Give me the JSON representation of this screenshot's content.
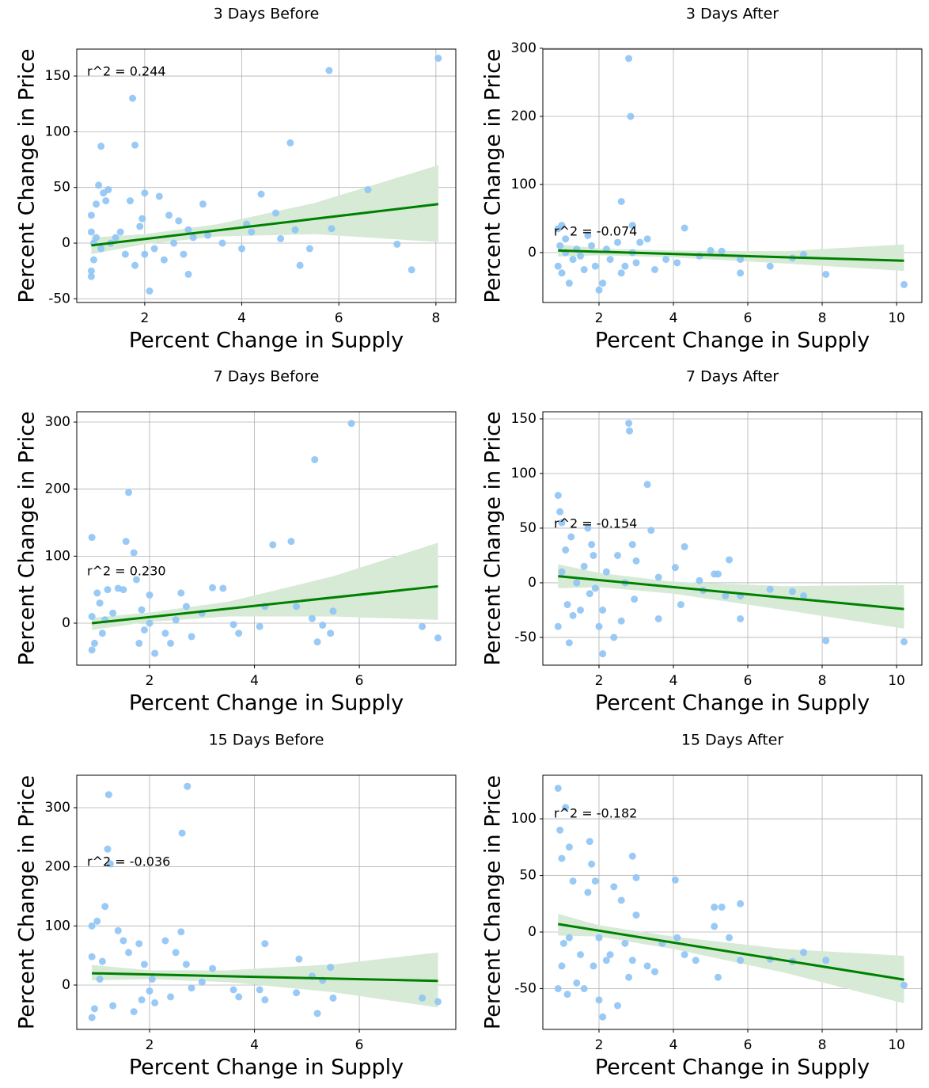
{
  "chart_data": [
    {
      "type": "scatter",
      "title": "3 Days Before",
      "xlabel": "Percent Change in Supply",
      "ylabel": "Percent Change in Price",
      "annotation": "r^2 = 0.244",
      "color": "#8ec4f5",
      "grid": true,
      "xlim": [
        0.6,
        8.41
      ],
      "ylim": [
        -53.3,
        174.2
      ],
      "xticks": [
        2,
        4,
        6,
        8
      ],
      "yticks": [
        -50,
        0,
        50,
        100,
        150
      ],
      "x": [
        0.9,
        0.9,
        0.9,
        0.9,
        0.95,
        0.95,
        1.0,
        1.0,
        1.05,
        1.1,
        1.1,
        1.15,
        1.2,
        1.25,
        1.3,
        1.4,
        1.5,
        1.6,
        1.7,
        1.75,
        1.8,
        1.8,
        1.9,
        1.95,
        2.0,
        2.0,
        2.1,
        2.2,
        2.3,
        2.4,
        2.5,
        2.6,
        2.7,
        2.8,
        2.9,
        2.9,
        3.0,
        3.2,
        3.3,
        3.6,
        4.0,
        4.1,
        4.2,
        4.4,
        4.7,
        4.8,
        5.0,
        5.1,
        5.2,
        5.4,
        5.8,
        5.85,
        6.6,
        7.2,
        7.5,
        8.05
      ],
      "y": [
        -30,
        -25,
        25,
        10,
        0,
        -15,
        5,
        35,
        52,
        87,
        -5,
        45,
        38,
        48,
        0,
        5,
        10,
        -10,
        38,
        130,
        88,
        -20,
        15,
        22,
        45,
        -10,
        -43,
        -5,
        42,
        -15,
        25,
        0,
        20,
        -10,
        -28,
        12,
        5,
        35,
        7,
        0,
        -5,
        17,
        10,
        44,
        27,
        4,
        90,
        12,
        -20,
        -5,
        155,
        13,
        48,
        -1,
        -24,
        166
      ],
      "fit": {
        "color": "#008000",
        "x": [
          0.9,
          8.05
        ],
        "y": [
          -2,
          35
        ]
      },
      "band": {
        "color": "#d6ead6",
        "x": [
          0.9,
          2,
          3.5,
          5.5,
          8.05
        ],
        "upper": [
          5,
          8,
          17,
          36,
          70
        ],
        "lower": [
          -10,
          -1,
          6,
          8,
          1
        ]
      }
    },
    {
      "type": "scatter",
      "title": "3 Days After",
      "xlabel": "Percent Change in Supply",
      "ylabel": "Percent Change in Price",
      "annotation": "r^2 = -0.074",
      "color": "#8ec4f5",
      "grid": true,
      "xlim": [
        0.49,
        10.68
      ],
      "ylim": [
        -73.3,
        298.8
      ],
      "xticks": [
        2,
        4,
        6,
        8,
        10
      ],
      "yticks": [
        0,
        100,
        200,
        300
      ],
      "x": [
        0.9,
        0.9,
        0.95,
        1.0,
        1.0,
        1.1,
        1.1,
        1.2,
        1.3,
        1.4,
        1.5,
        1.6,
        1.7,
        1.8,
        1.9,
        2.0,
        2.1,
        2.2,
        2.3,
        2.5,
        2.6,
        2.6,
        2.7,
        2.8,
        2.85,
        2.9,
        2.9,
        3.0,
        3.1,
        3.3,
        3.5,
        3.8,
        4.1,
        4.3,
        4.7,
        5.0,
        5.3,
        5.8,
        5.8,
        6.6,
        7.2,
        7.5,
        8.1,
        10.2
      ],
      "y": [
        35,
        -20,
        10,
        40,
        -30,
        0,
        20,
        -45,
        -10,
        5,
        -5,
        -25,
        25,
        10,
        -20,
        -55,
        -45,
        5,
        -10,
        15,
        -30,
        75,
        -20,
        285,
        200,
        0,
        40,
        -15,
        15,
        20,
        -25,
        -10,
        -15,
        36,
        -5,
        3,
        2,
        -30,
        -10,
        -20,
        -8,
        -3,
        -32,
        -47
      ],
      "fit": {
        "color": "#008000",
        "x": [
          0.9,
          10.2
        ],
        "y": [
          3,
          -12
        ]
      },
      "band": {
        "color": "#d6ead6",
        "x": [
          0.9,
          2,
          4,
          7,
          10.2
        ],
        "upper": [
          12,
          6,
          3,
          2,
          12
        ],
        "lower": [
          -6,
          -4,
          -7,
          -16,
          -27
        ]
      }
    },
    {
      "type": "scatter",
      "title": "7 Days Before",
      "xlabel": "Percent Change in Supply",
      "ylabel": "Percent Change in Price",
      "annotation": "r^2 = 0.230",
      "color": "#8ec4f5",
      "grid": true,
      "xlim": [
        0.611,
        7.84
      ],
      "ylim": [
        -62.6,
        315.4
      ],
      "xticks": [
        2,
        4,
        6
      ],
      "yticks": [
        0,
        100,
        200,
        300
      ],
      "x": [
        0.9,
        0.9,
        0.9,
        0.95,
        1.0,
        1.05,
        1.1,
        1.15,
        1.2,
        1.3,
        1.4,
        1.5,
        1.55,
        1.6,
        1.7,
        1.75,
        1.8,
        1.85,
        1.9,
        2.0,
        2.0,
        2.1,
        2.3,
        2.4,
        2.5,
        2.6,
        2.7,
        2.8,
        3.0,
        3.2,
        3.4,
        3.6,
        3.7,
        4.1,
        4.2,
        4.35,
        4.7,
        4.8,
        5.1,
        5.15,
        5.2,
        5.3,
        5.45,
        5.5,
        5.85,
        7.2,
        7.5
      ],
      "y": [
        128,
        -40,
        10,
        -30,
        45,
        30,
        -15,
        5,
        50,
        15,
        52,
        50,
        122,
        195,
        105,
        65,
        -30,
        20,
        -10,
        42,
        0,
        -45,
        -15,
        -30,
        5,
        45,
        25,
        -20,
        15,
        53,
        52,
        -2,
        -15,
        -5,
        25,
        117,
        122,
        25,
        7,
        244,
        -28,
        -3,
        -15,
        18,
        298,
        -5,
        -22
      ],
      "fit": {
        "color": "#008000",
        "x": [
          0.9,
          7.5
        ],
        "y": [
          0,
          55
        ]
      },
      "band": {
        "color": "#d6ead6",
        "x": [
          0.9,
          2,
          3.5,
          5.5,
          7.5
        ],
        "upper": [
          8,
          16,
          32,
          70,
          120
        ],
        "lower": [
          -10,
          2,
          10,
          10,
          5
        ]
      }
    },
    {
      "type": "scatter",
      "title": "7 Days After",
      "xlabel": "Percent Change in Supply",
      "ylabel": "Percent Change in Price",
      "annotation": "r^2 = -0.154",
      "color": "#8ec4f5",
      "grid": true,
      "xlim": [
        0.49,
        10.68
      ],
      "ylim": [
        -75.4,
        156.5
      ],
      "xticks": [
        2,
        4,
        6,
        8,
        10
      ],
      "yticks": [
        -50,
        0,
        50,
        100,
        150
      ],
      "x": [
        0.9,
        0.9,
        0.95,
        1.0,
        1.0,
        1.1,
        1.15,
        1.2,
        1.25,
        1.3,
        1.4,
        1.5,
        1.6,
        1.7,
        1.75,
        1.8,
        1.85,
        1.9,
        2.0,
        2.1,
        2.1,
        2.2,
        2.4,
        2.5,
        2.6,
        2.7,
        2.8,
        2.82,
        2.9,
        2.95,
        3.0,
        3.3,
        3.4,
        3.6,
        3.6,
        4.05,
        4.2,
        4.3,
        4.7,
        4.8,
        5.1,
        5.2,
        5.4,
        5.5,
        5.8,
        5.8,
        6.6,
        7.2,
        7.5,
        8.1,
        10.2
      ],
      "y": [
        80,
        -40,
        65,
        55,
        10,
        30,
        -20,
        -55,
        42,
        -30,
        0,
        -25,
        15,
        50,
        -10,
        35,
        25,
        -5,
        -40,
        -65,
        -25,
        10,
        -50,
        25,
        -35,
        0,
        146,
        139,
        35,
        -15,
        20,
        90,
        48,
        -33,
        5,
        14,
        -20,
        33,
        2,
        -7,
        8,
        8,
        -12,
        21,
        -33,
        -12,
        -6,
        -8,
        -12,
        -53,
        -54
      ],
      "fit": {
        "color": "#008000",
        "x": [
          0.9,
          10.2
        ],
        "y": [
          6,
          -24
        ]
      },
      "band": {
        "color": "#d6ead6",
        "x": [
          0.9,
          2,
          4,
          7,
          10.2
        ],
        "upper": [
          17,
          9,
          1,
          -3,
          -2
        ],
        "lower": [
          -5,
          -4,
          -10,
          -25,
          -42
        ]
      }
    },
    {
      "type": "scatter",
      "title": "15 Days Before",
      "xlabel": "Percent Change in Supply",
      "ylabel": "Percent Change in Price",
      "annotation": "r^2 = -0.036",
      "color": "#8ec4f5",
      "grid": true,
      "xlim": [
        0.611,
        7.84
      ],
      "ylim": [
        -75,
        354.9
      ],
      "xticks": [
        2,
        4,
        6
      ],
      "yticks": [
        0,
        100,
        200,
        300
      ],
      "x": [
        0.9,
        0.9,
        0.9,
        0.95,
        1.0,
        1.05,
        1.1,
        1.15,
        1.2,
        1.22,
        1.25,
        1.3,
        1.4,
        1.5,
        1.6,
        1.7,
        1.8,
        1.85,
        1.9,
        2.0,
        2.05,
        2.1,
        2.3,
        2.4,
        2.5,
        2.6,
        2.62,
        2.7,
        2.72,
        2.8,
        3.0,
        3.2,
        3.6,
        3.7,
        4.1,
        4.2,
        4.2,
        4.8,
        4.85,
        5.1,
        5.2,
        5.3,
        5.45,
        5.5,
        7.2,
        7.5
      ],
      "y": [
        -55,
        100,
        48,
        -40,
        108,
        10,
        40,
        133,
        230,
        322,
        205,
        -35,
        92,
        75,
        55,
        -45,
        70,
        -25,
        35,
        -10,
        10,
        -30,
        75,
        -20,
        55,
        90,
        257,
        35,
        336,
        -5,
        5,
        28,
        -8,
        -20,
        -8,
        70,
        -25,
        -13,
        44,
        15,
        -48,
        8,
        30,
        -22,
        -22,
        -28
      ],
      "fit": {
        "color": "#008000",
        "x": [
          0.9,
          7.5
        ],
        "y": [
          20,
          7
        ]
      },
      "band": {
        "color": "#d6ead6",
        "x": [
          0.9,
          2,
          3.5,
          5.5,
          7.5
        ],
        "upper": [
          34,
          25,
          25,
          35,
          55
        ],
        "lower": [
          8,
          10,
          5,
          -12,
          -38
        ]
      }
    },
    {
      "type": "scatter",
      "title": "15 Days After",
      "xlabel": "Percent Change in Supply",
      "ylabel": "Percent Change in Price",
      "annotation": "r^2 = -0.182",
      "color": "#8ec4f5",
      "grid": true,
      "xlim": [
        0.49,
        10.68
      ],
      "ylim": [
        -86,
        138.5
      ],
      "xticks": [
        2,
        4,
        6,
        8,
        10
      ],
      "yticks": [
        -50,
        0,
        50,
        100
      ],
      "x": [
        0.9,
        0.9,
        0.95,
        1.0,
        1.0,
        1.05,
        1.1,
        1.15,
        1.2,
        1.2,
        1.3,
        1.4,
        1.5,
        1.6,
        1.7,
        1.75,
        1.8,
        1.85,
        1.9,
        2.0,
        2.0,
        2.1,
        2.2,
        2.3,
        2.4,
        2.5,
        2.6,
        2.7,
        2.8,
        2.9,
        2.9,
        3.0,
        3.0,
        3.3,
        3.5,
        3.7,
        4.05,
        4.1,
        4.3,
        4.6,
        5.1,
        5.1,
        5.2,
        5.3,
        5.5,
        5.8,
        5.8,
        6.6,
        7.2,
        7.5,
        8.1,
        10.2
      ],
      "y": [
        127,
        -50,
        90,
        65,
        -30,
        -10,
        110,
        -55,
        75,
        -5,
        45,
        -45,
        -20,
        -50,
        35,
        80,
        60,
        -30,
        45,
        -5,
        -60,
        -75,
        -25,
        -20,
        40,
        -65,
        28,
        -10,
        -40,
        -25,
        67,
        48,
        15,
        -30,
        -35,
        -10,
        46,
        -5,
        -20,
        -25,
        22,
        5,
        -40,
        22,
        -5,
        25,
        -25,
        -24,
        -26,
        -18,
        -25,
        -47
      ],
      "fit": {
        "color": "#008000",
        "x": [
          0.9,
          10.2
        ],
        "y": [
          7,
          -42
        ]
      },
      "band": {
        "color": "#d6ead6",
        "x": [
          0.9,
          2,
          4,
          7,
          10.2
        ],
        "upper": [
          16,
          6,
          -4,
          -15,
          -21
        ],
        "lower": [
          -3,
          -4,
          -15,
          -36,
          -63
        ]
      }
    }
  ]
}
